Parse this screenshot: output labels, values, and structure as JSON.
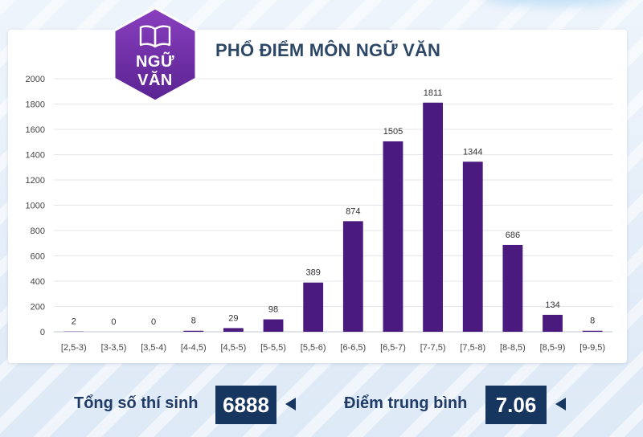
{
  "badge": {
    "line1": "NGỮ",
    "line2": "VĂN",
    "icon": "book-icon"
  },
  "colors": {
    "bar": "#4b1a7e",
    "badge": "#6a2c9c",
    "title": "#2d4766",
    "box": "#17365f"
  },
  "chart_data": {
    "type": "bar",
    "title": "PHỔ ĐIỂM MÔN NGỮ VĂN",
    "xlabel": "",
    "ylabel": "",
    "ylim": [
      0,
      2000
    ],
    "yticks": [
      0,
      200,
      400,
      600,
      800,
      1000,
      1200,
      1400,
      1600,
      1800,
      2000
    ],
    "grid": true,
    "categories": [
      "[2,5-3)",
      "[3-3,5)",
      "[3,5-4)",
      "[4-4,5)",
      "[4,5-5)",
      "[5-5,5)",
      "[5,5-6)",
      "[6-6,5)",
      "[6,5-7)",
      "[7-7,5)",
      "[7,5-8)",
      "[8-8,5)",
      "[8,5-9)",
      "[9-9,5)"
    ],
    "values": [
      2,
      0,
      0,
      8,
      29,
      98,
      389,
      874,
      1505,
      1811,
      1344,
      686,
      134,
      8
    ]
  },
  "footer": {
    "total_label": "Tổng số thí sinh",
    "total_value": "6888",
    "avg_label": "Điểm trung bình",
    "avg_value": "7.06"
  }
}
